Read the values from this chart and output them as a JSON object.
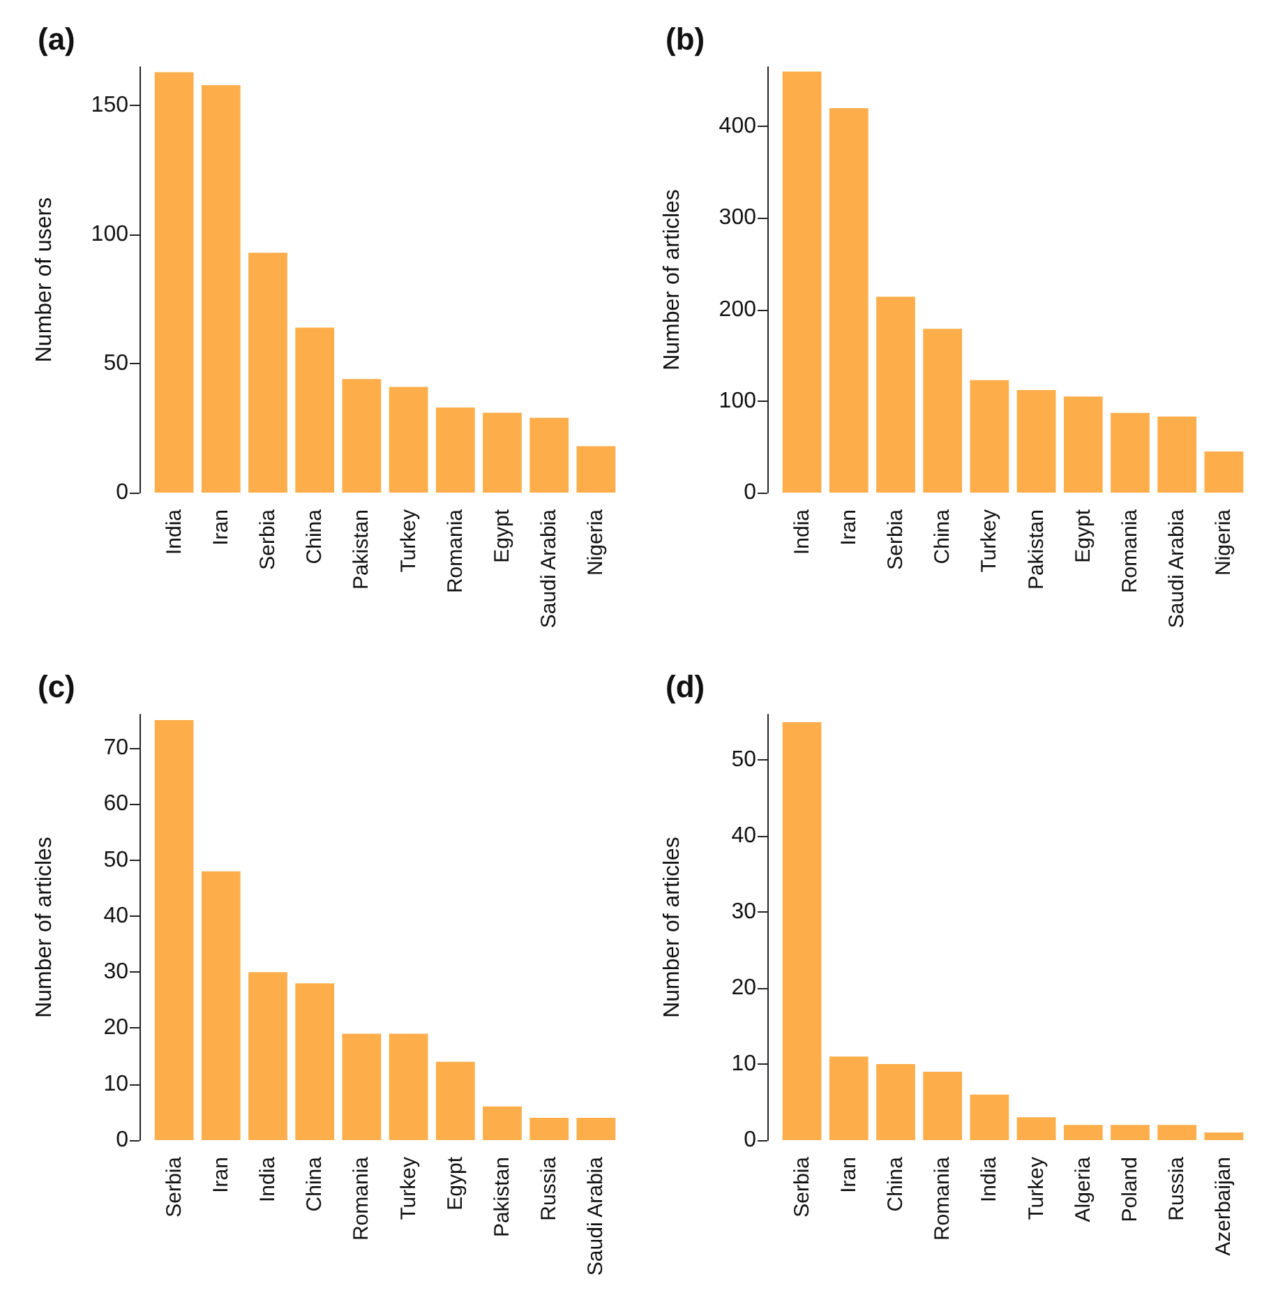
{
  "chart_data": [
    {
      "type": "bar",
      "title": "(a)",
      "ylabel": "Number of users",
      "color": "#fdae4b",
      "categories": [
        "India",
        "Iran",
        "Serbia",
        "China",
        "Pakistan",
        "Turkey",
        "Romania",
        "Egypt",
        "Saudi Arabia",
        "Nigeria"
      ],
      "values": [
        163,
        158,
        93,
        64,
        44,
        41,
        33,
        31,
        29,
        18
      ],
      "ylim": [
        0,
        165
      ],
      "yticks": [
        0,
        50,
        100,
        150
      ]
    },
    {
      "type": "bar",
      "title": "(b)",
      "ylabel": "Number of articles",
      "color": "#fdae4b",
      "categories": [
        "India",
        "Iran",
        "Serbia",
        "China",
        "Turkey",
        "Pakistan",
        "Egypt",
        "Romania",
        "Saudi Arabia",
        "Nigeria"
      ],
      "values": [
        460,
        420,
        214,
        179,
        123,
        112,
        105,
        87,
        83,
        45
      ],
      "ylim": [
        0,
        465
      ],
      "yticks": [
        0,
        100,
        200,
        300,
        400
      ]
    },
    {
      "type": "bar",
      "title": "(c)",
      "ylabel": "Number of articles",
      "color": "#fdae4b",
      "categories": [
        "Serbia",
        "Iran",
        "India",
        "China",
        "Romania",
        "Turkey",
        "Egypt",
        "Pakistan",
        "Russia",
        "Saudi Arabia"
      ],
      "values": [
        75,
        48,
        30,
        28,
        19,
        19,
        14,
        6,
        4,
        4
      ],
      "ylim": [
        0,
        76
      ],
      "yticks": [
        0,
        10,
        20,
        30,
        40,
        50,
        60,
        70
      ]
    },
    {
      "type": "bar",
      "title": "(d)",
      "ylabel": "Number of articles",
      "color": "#fdae4b",
      "categories": [
        "Serbia",
        "Iran",
        "China",
        "Romania",
        "India",
        "Turkey",
        "Algeria",
        "Poland",
        "Russia",
        "Azerbaijan"
      ],
      "values": [
        55,
        11,
        10,
        9,
        6,
        3,
        2,
        2,
        2,
        1
      ],
      "ylim": [
        0,
        56
      ],
      "yticks": [
        0,
        10,
        20,
        30,
        40,
        50
      ]
    }
  ]
}
